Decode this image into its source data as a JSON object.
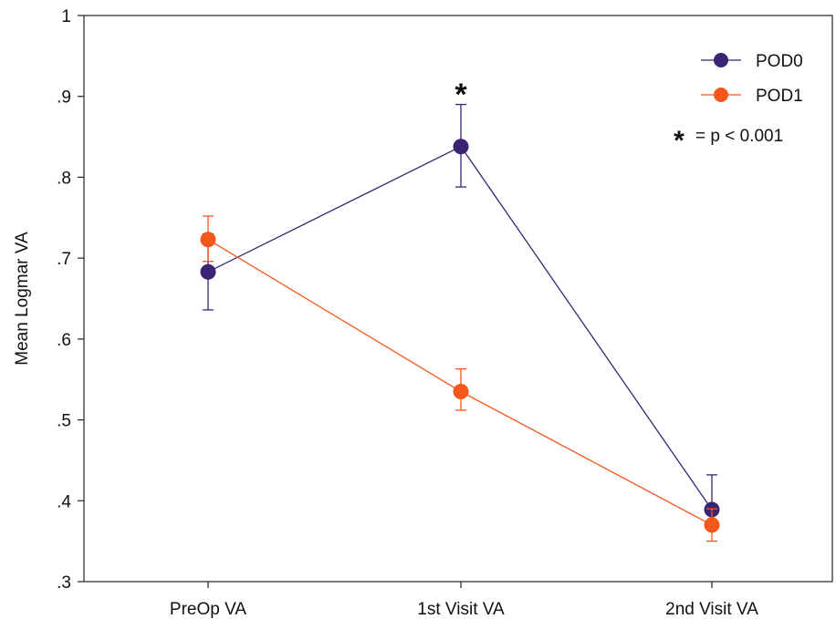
{
  "chart_data": {
    "type": "line",
    "title": "",
    "xlabel": "",
    "ylabel": "Mean Logmar VA",
    "categories": [
      "PreOp VA",
      "1st Visit VA",
      "2nd Visit VA"
    ],
    "ylim": [
      0.3,
      1.0
    ],
    "yticks": [
      {
        "value": 0.3,
        "label": ".3"
      },
      {
        "value": 0.4,
        "label": ".4"
      },
      {
        "value": 0.5,
        "label": ".5"
      },
      {
        "value": 0.6,
        "label": ".6"
      },
      {
        "value": 0.7,
        "label": ".7"
      },
      {
        "value": 0.8,
        "label": ".8"
      },
      {
        "value": 0.9,
        "label": ".9"
      },
      {
        "value": 1.0,
        "label": "1"
      }
    ],
    "series": [
      {
        "name": "POD0",
        "color": "#3b2472",
        "values": [
          0.683,
          0.838,
          0.389
        ],
        "error_low": [
          0.636,
          0.788,
          0.368
        ],
        "error_high": [
          0.73,
          0.89,
          0.432
        ]
      },
      {
        "name": "POD1",
        "color": "#f2571c",
        "values": [
          0.723,
          0.535,
          0.37
        ],
        "error_low": [
          0.696,
          0.512,
          0.35
        ],
        "error_high": [
          0.752,
          0.563,
          0.39
        ]
      }
    ],
    "annotations": [
      {
        "category": "1st Visit VA",
        "y": 0.91,
        "text": "*"
      }
    ],
    "legend": {
      "position": "top-right",
      "items": [
        "POD0",
        "POD1"
      ],
      "note_symbol": "*",
      "note_text": "= p < 0.001"
    },
    "grid": false
  }
}
